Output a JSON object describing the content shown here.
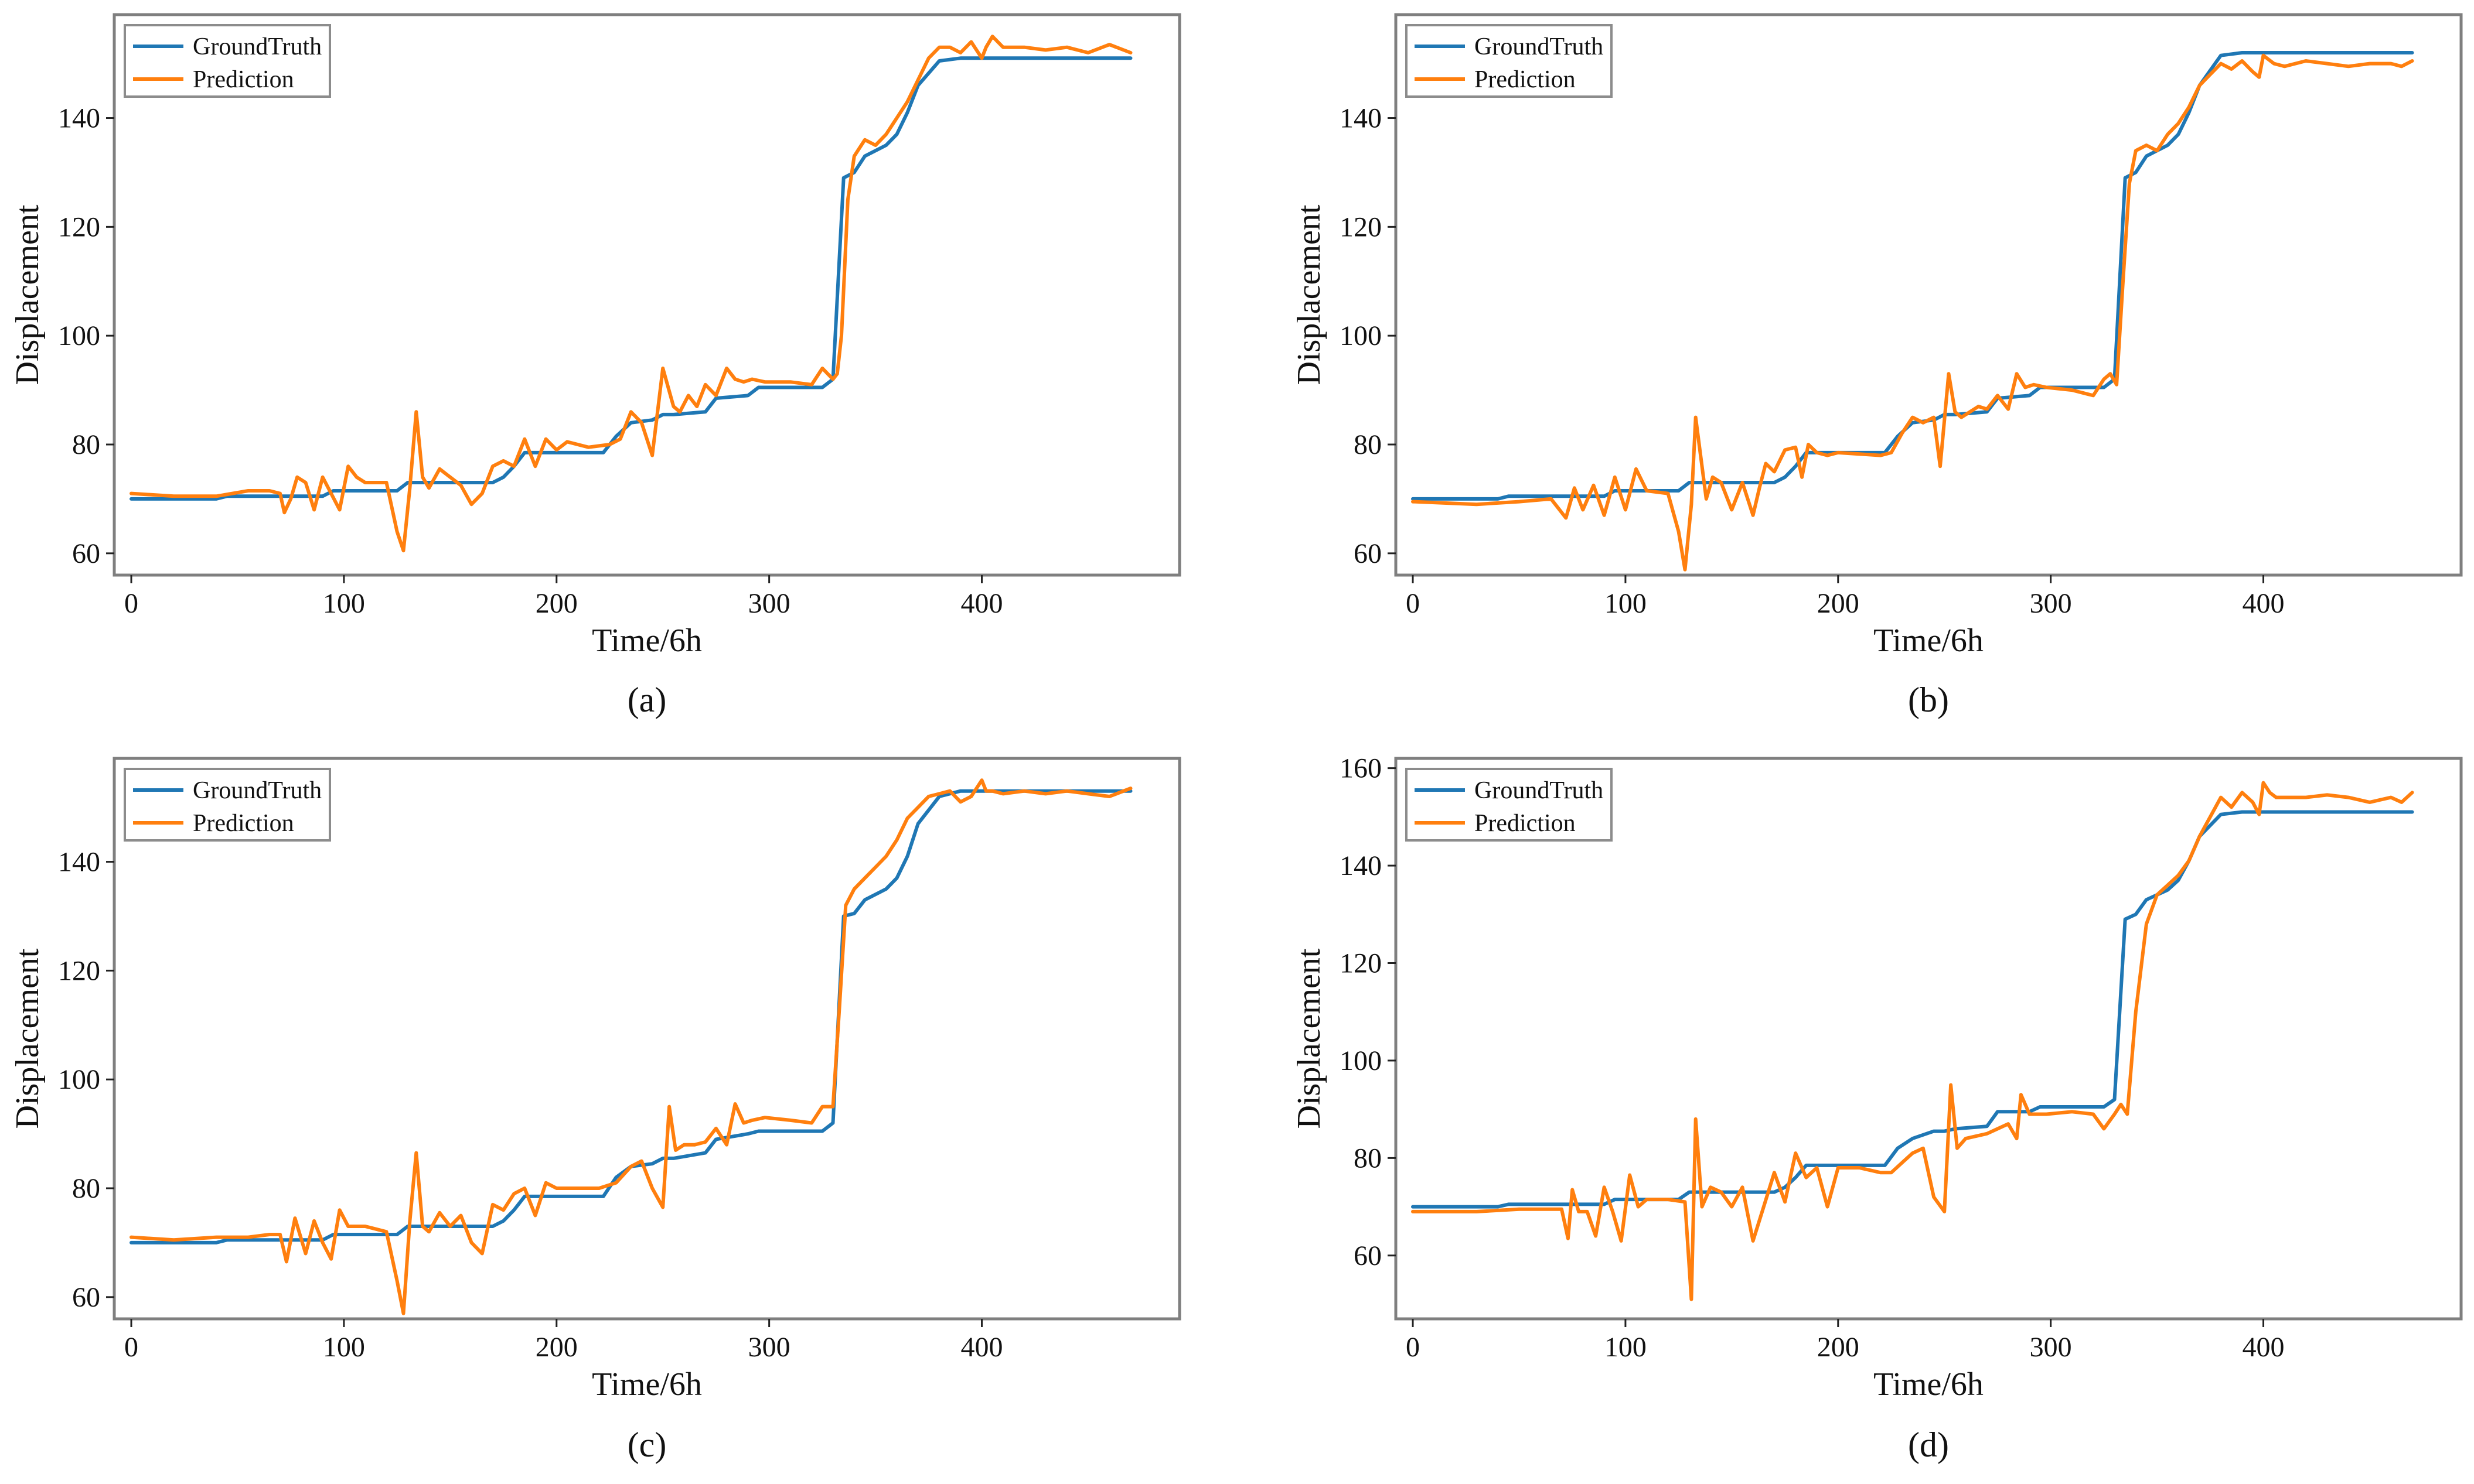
{
  "colors": {
    "ground_truth": "#1f77b4",
    "prediction": "#ff7f0e",
    "frame": "#7f7f7f",
    "text": "#111111"
  },
  "chart_data": [
    {
      "type": "line",
      "panel_label": "(a)",
      "xlabel": "Time/6h",
      "ylabel": "Displacement",
      "xlim": [
        -8,
        493
      ],
      "ylim": [
        56,
        159
      ],
      "xticks": [
        0,
        100,
        200,
        300,
        400
      ],
      "xtick_labels": [
        "0",
        "100",
        "200",
        "300",
        "400"
      ],
      "yticks": [
        60,
        80,
        100,
        120,
        140
      ],
      "ytick_labels": [
        "60",
        "80",
        "100",
        "120",
        "140"
      ],
      "legend": "top-left",
      "series": [
        {
          "name": "GroundTruth",
          "color": "#1f77b4",
          "x": [
            0,
            40,
            45,
            90,
            95,
            125,
            130,
            170,
            175,
            180,
            185,
            222,
            228,
            235,
            245,
            250,
            255,
            270,
            275,
            290,
            295,
            325,
            330,
            335,
            340,
            345,
            355,
            360,
            365,
            370,
            380,
            390,
            400,
            420,
            470
          ],
          "y": [
            70,
            70,
            70.5,
            70.5,
            71.5,
            71.5,
            73,
            73,
            74,
            76,
            78.5,
            78.5,
            81.5,
            84,
            84.5,
            85.5,
            85.5,
            86,
            88.5,
            89,
            90.5,
            90.5,
            92,
            129,
            130,
            133,
            135,
            137,
            141,
            146,
            150.5,
            151,
            151,
            151,
            151
          ]
        },
        {
          "name": "Prediction",
          "color": "#ff7f0e",
          "x": [
            0,
            20,
            40,
            55,
            65,
            70,
            72,
            75,
            78,
            82,
            86,
            90,
            94,
            98,
            102,
            106,
            110,
            120,
            125,
            128,
            131,
            134,
            137,
            140,
            145,
            150,
            155,
            160,
            165,
            170,
            175,
            180,
            185,
            190,
            195,
            200,
            205,
            215,
            225,
            230,
            235,
            240,
            245,
            250,
            255,
            258,
            262,
            266,
            270,
            275,
            280,
            284,
            288,
            292,
            298,
            310,
            320,
            325,
            330,
            332,
            334,
            337,
            340,
            345,
            350,
            355,
            360,
            365,
            370,
            375,
            380,
            385,
            390,
            395,
            400,
            402,
            405,
            410,
            420,
            430,
            440,
            450,
            460,
            470
          ],
          "y": [
            71,
            70.5,
            70.5,
            71.5,
            71.5,
            71,
            67.5,
            70,
            74,
            73,
            68,
            74,
            71,
            68,
            76,
            74,
            73,
            73,
            64,
            60.5,
            72,
            86,
            74,
            72,
            75.5,
            74,
            72.5,
            69,
            71,
            76,
            77,
            76,
            81,
            76,
            81,
            79,
            80.5,
            79.5,
            80,
            81,
            86,
            84,
            78,
            94,
            87,
            86,
            89,
            87,
            91,
            89,
            94,
            92,
            91.5,
            92,
            91.5,
            91.5,
            91,
            94,
            92,
            93,
            100,
            125,
            133,
            136,
            135,
            137,
            140,
            143,
            147,
            151,
            153,
            153,
            152,
            154,
            151,
            153,
            155,
            153,
            153,
            152.5,
            153,
            152,
            153.5,
            152
          ]
        }
      ]
    },
    {
      "type": "line",
      "panel_label": "(b)",
      "xlabel": "Time/6h",
      "ylabel": "Displacement",
      "xlim": [
        -8,
        493
      ],
      "ylim": [
        56,
        159
      ],
      "xticks": [
        0,
        100,
        200,
        300,
        400
      ],
      "xtick_labels": [
        "0",
        "100",
        "200",
        "300",
        "400"
      ],
      "yticks": [
        60,
        80,
        100,
        120,
        140
      ],
      "ytick_labels": [
        "60",
        "80",
        "100",
        "120",
        "140"
      ],
      "legend": "top-left",
      "series": [
        {
          "name": "GroundTruth",
          "color": "#1f77b4",
          "x": [
            0,
            40,
            45,
            90,
            95,
            125,
            130,
            170,
            175,
            180,
            185,
            222,
            228,
            235,
            245,
            250,
            255,
            270,
            275,
            290,
            295,
            325,
            330,
            335,
            340,
            345,
            355,
            360,
            365,
            370,
            380,
            390,
            400,
            420,
            470
          ],
          "y": [
            70,
            70,
            70.5,
            70.5,
            71.5,
            71.5,
            73,
            73,
            74,
            76,
            78.5,
            78.5,
            81.5,
            84,
            84.5,
            85.5,
            85.5,
            86,
            88.5,
            89,
            90.5,
            90.5,
            92,
            129,
            130,
            133,
            135,
            137,
            141,
            146,
            151.5,
            152,
            152,
            152,
            152
          ]
        },
        {
          "name": "Prediction",
          "color": "#ff7f0e",
          "x": [
            0,
            30,
            50,
            65,
            72,
            76,
            80,
            85,
            90,
            95,
            100,
            105,
            110,
            120,
            125,
            128,
            131,
            133,
            135,
            138,
            141,
            145,
            150,
            155,
            160,
            163,
            166,
            170,
            175,
            180,
            183,
            186,
            190,
            195,
            200,
            220,
            225,
            230,
            235,
            240,
            245,
            248,
            252,
            255,
            258,
            262,
            266,
            270,
            275,
            280,
            284,
            288,
            292,
            298,
            310,
            320,
            325,
            328,
            331,
            334,
            337,
            340,
            345,
            350,
            355,
            360,
            365,
            370,
            375,
            380,
            385,
            390,
            395,
            398,
            400,
            405,
            410,
            420,
            430,
            440,
            450,
            460,
            465,
            470
          ],
          "y": [
            69.5,
            69,
            69.5,
            70,
            66.5,
            72,
            68,
            72.5,
            67,
            74,
            68,
            75.5,
            71.5,
            71,
            64,
            57,
            69,
            85,
            79,
            70,
            74,
            73,
            68,
            73,
            67,
            72,
            76.5,
            75,
            79,
            79.5,
            74,
            80,
            78.5,
            78,
            78.5,
            78,
            78.5,
            82,
            85,
            84,
            85,
            76,
            93,
            86,
            85,
            86,
            87,
            86.5,
            89,
            86.5,
            93,
            90.5,
            91,
            90.5,
            90,
            89,
            92,
            93,
            91,
            110,
            128,
            134,
            135,
            134,
            137,
            139,
            142,
            146,
            148,
            150,
            149,
            150.5,
            148.5,
            147.5,
            151.5,
            150,
            149.5,
            150.5,
            150,
            149.5,
            150,
            150,
            149.5,
            150.5
          ]
        }
      ]
    },
    {
      "type": "line",
      "panel_label": "(c)",
      "xlabel": "Time/6h",
      "ylabel": "Displacement",
      "xlim": [
        -8,
        493
      ],
      "ylim": [
        56,
        159
      ],
      "xticks": [
        0,
        100,
        200,
        300,
        400
      ],
      "xtick_labels": [
        "0",
        "100",
        "200",
        "300",
        "400"
      ],
      "yticks": [
        60,
        80,
        100,
        120,
        140
      ],
      "ytick_labels": [
        "60",
        "80",
        "100",
        "120",
        "140"
      ],
      "legend": "top-left",
      "series": [
        {
          "name": "GroundTruth",
          "color": "#1f77b4",
          "x": [
            0,
            40,
            45,
            90,
            95,
            125,
            130,
            170,
            175,
            180,
            185,
            222,
            228,
            235,
            245,
            250,
            255,
            270,
            275,
            290,
            295,
            325,
            330,
            335,
            340,
            345,
            355,
            360,
            365,
            370,
            380,
            390,
            400,
            420,
            470
          ],
          "y": [
            70,
            70,
            70.5,
            70.5,
            71.5,
            71.5,
            73,
            73,
            74,
            76,
            78.5,
            78.5,
            82,
            84,
            84.5,
            85.5,
            85.5,
            86.5,
            89,
            90,
            90.5,
            90.5,
            92,
            130,
            130.5,
            133,
            135,
            137,
            141,
            147,
            152,
            153,
            153,
            153,
            153
          ]
        },
        {
          "name": "Prediction",
          "color": "#ff7f0e",
          "x": [
            0,
            20,
            40,
            55,
            65,
            70,
            73,
            77,
            82,
            86,
            90,
            94,
            98,
            102,
            106,
            110,
            120,
            125,
            128,
            131,
            134,
            137,
            140,
            145,
            150,
            155,
            160,
            165,
            170,
            175,
            180,
            185,
            190,
            195,
            200,
            210,
            220,
            228,
            235,
            240,
            245,
            250,
            253,
            256,
            260,
            265,
            270,
            275,
            280,
            284,
            288,
            292,
            298,
            310,
            320,
            325,
            330,
            333,
            336,
            340,
            345,
            350,
            355,
            360,
            365,
            370,
            375,
            380,
            385,
            390,
            395,
            400,
            402,
            405,
            410,
            420,
            430,
            440,
            450,
            460,
            470
          ],
          "y": [
            71,
            70.5,
            71,
            71,
            71.5,
            71.5,
            66.5,
            74.5,
            68,
            74,
            70,
            67,
            76,
            73,
            73,
            73,
            72,
            63,
            57,
            74,
            86.5,
            73,
            72,
            75.5,
            73,
            75,
            70,
            68,
            77,
            76,
            79,
            80,
            75,
            81,
            80,
            80,
            80,
            81,
            84,
            85,
            80,
            76.5,
            95,
            87,
            88,
            88,
            88.5,
            91,
            88,
            95.5,
            92,
            92.5,
            93,
            92.5,
            92,
            95,
            95,
            113,
            132,
            135,
            137,
            139,
            141,
            144,
            148,
            150,
            152,
            152.5,
            153,
            151,
            152,
            155,
            153,
            153,
            152.5,
            153,
            152.5,
            153,
            152.5,
            152,
            153.5
          ]
        }
      ]
    },
    {
      "type": "line",
      "panel_label": "(d)",
      "xlabel": "Time/6h",
      "ylabel": "Displacement",
      "xlim": [
        -8,
        493
      ],
      "ylim": [
        47,
        162
      ],
      "xticks": [
        0,
        100,
        200,
        300,
        400
      ],
      "xtick_labels": [
        "0",
        "100",
        "200",
        "300",
        "400"
      ],
      "yticks": [
        60,
        80,
        100,
        120,
        140,
        160
      ],
      "ytick_labels": [
        "60",
        "80",
        "100",
        "120",
        "140",
        "160"
      ],
      "legend": "top-left",
      "series": [
        {
          "name": "GroundTruth",
          "color": "#1f77b4",
          "x": [
            0,
            40,
            45,
            90,
            95,
            125,
            130,
            170,
            175,
            180,
            185,
            222,
            228,
            235,
            245,
            250,
            255,
            270,
            275,
            290,
            295,
            325,
            330,
            335,
            340,
            345,
            355,
            360,
            365,
            370,
            380,
            390,
            400,
            420,
            470
          ],
          "y": [
            70,
            70,
            70.5,
            70.5,
            71.5,
            71.5,
            73,
            73,
            74,
            76,
            78.5,
            78.5,
            82,
            84,
            85.5,
            85.5,
            86,
            86.5,
            89.5,
            89.5,
            90.5,
            90.5,
            92,
            129,
            130,
            133,
            135,
            137,
            141,
            146,
            150.5,
            151,
            151,
            151,
            151
          ]
        },
        {
          "name": "Prediction",
          "color": "#ff7f0e",
          "x": [
            0,
            30,
            50,
            70,
            73,
            75,
            78,
            82,
            86,
            90,
            94,
            98,
            102,
            106,
            110,
            120,
            128,
            131,
            133,
            136,
            140,
            145,
            150,
            155,
            160,
            165,
            170,
            175,
            180,
            185,
            190,
            195,
            200,
            210,
            220,
            225,
            230,
            235,
            240,
            245,
            250,
            253,
            256,
            260,
            265,
            270,
            275,
            280,
            284,
            286,
            290,
            298,
            310,
            320,
            325,
            330,
            333,
            336,
            340,
            345,
            350,
            355,
            360,
            365,
            370,
            375,
            380,
            385,
            390,
            395,
            398,
            400,
            403,
            406,
            410,
            420,
            430,
            440,
            450,
            460,
            465,
            470
          ],
          "y": [
            69,
            69,
            69.5,
            69.5,
            63.5,
            73.5,
            69,
            69,
            64,
            74,
            69,
            63,
            76.5,
            70,
            71.5,
            71.5,
            71,
            51,
            88,
            70,
            74,
            73,
            70,
            74,
            63,
            70,
            77,
            71,
            81,
            76,
            78,
            70,
            78,
            78,
            77,
            77,
            79,
            81,
            82,
            72,
            69,
            95,
            82,
            84,
            84.5,
            85,
            86,
            87,
            84,
            93,
            89,
            89,
            89.5,
            89,
            86,
            89,
            91,
            89,
            110,
            128,
            134,
            136,
            138,
            141,
            146,
            150,
            154,
            152,
            155,
            153,
            150.5,
            157,
            155,
            154,
            154,
            154,
            154.5,
            154,
            153,
            154,
            153,
            155
          ]
        }
      ]
    }
  ]
}
